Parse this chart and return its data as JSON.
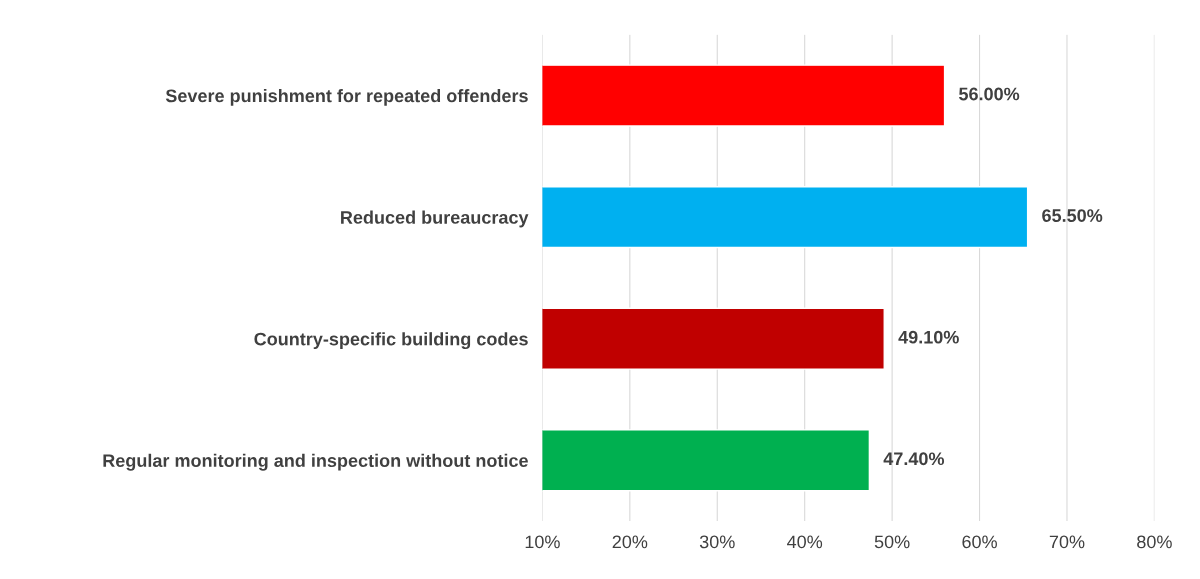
{
  "chart_data": {
    "type": "bar",
    "orientation": "horizontal",
    "categories": [
      "Severe punishment for repeated offenders",
      "Reduced bureaucracy",
      "Country-specific building codes",
      "Regular monitoring and inspection without notice"
    ],
    "values": [
      56.0,
      65.5,
      49.1,
      47.4
    ],
    "colors": [
      "#ff0000",
      "#00b0f0",
      "#c00000",
      "#00b050"
    ],
    "value_labels": [
      "56.00%",
      "65.50%",
      "49.10%",
      "47.40%"
    ],
    "xlim": [
      10,
      80
    ],
    "xticks": [
      {
        "value": 10,
        "label": "10%"
      },
      {
        "value": 20,
        "label": "20%"
      },
      {
        "value": 30,
        "label": "30%"
      },
      {
        "value": 40,
        "label": "40%"
      },
      {
        "value": 50,
        "label": "50%"
      },
      {
        "value": 60,
        "label": "60%"
      },
      {
        "value": 70,
        "label": "70%"
      },
      {
        "value": 80,
        "label": "80%"
      }
    ],
    "grid": "x",
    "legend": false
  }
}
